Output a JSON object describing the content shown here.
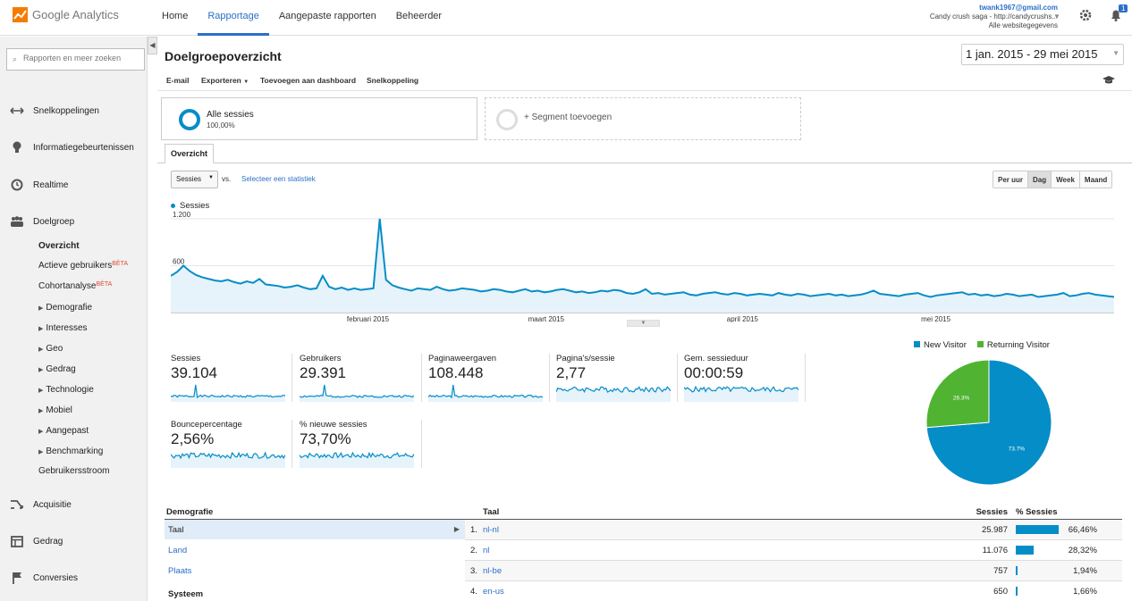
{
  "app": {
    "logo_text": "Google Analytics",
    "nav": [
      {
        "label": "Home"
      },
      {
        "label": "Rapportage"
      },
      {
        "label": "Aangepaste rapporten"
      },
      {
        "label": "Beheerder"
      }
    ],
    "account": {
      "email": "twank1967@gmail.com",
      "property": "Candy crush saga - http://candycrushs...",
      "view": "Alle websitegegevens",
      "notification_count": "1"
    }
  },
  "sidebar": {
    "search_placeholder": "Rapporten en meer zoeken",
    "groups": [
      {
        "label": "Snelkoppelingen",
        "icon": "shortcut-icon"
      },
      {
        "label": "Informatiegebeurtenissen",
        "icon": "lightbulb-icon"
      },
      {
        "label": "Realtime",
        "icon": "clock-icon"
      },
      {
        "label": "Doelgroep",
        "icon": "people-icon"
      },
      {
        "label": "Acquisitie",
        "icon": "acquisition-icon"
      },
      {
        "label": "Gedrag",
        "icon": "behavior-icon"
      },
      {
        "label": "Conversies",
        "icon": "flag-icon"
      }
    ],
    "audience_items": [
      {
        "label": "Overzicht"
      },
      {
        "label": "Actieve gebruikers",
        "badge": "BÈTA"
      },
      {
        "label": "Cohortanalyse",
        "badge": "BÈTA"
      },
      {
        "label": "Demografie"
      },
      {
        "label": "Interesses"
      },
      {
        "label": "Geo"
      },
      {
        "label": "Gedrag"
      },
      {
        "label": "Technologie"
      },
      {
        "label": "Mobiel"
      },
      {
        "label": "Aangepast"
      },
      {
        "label": "Benchmarking"
      },
      {
        "label": "Gebruikersstroom"
      }
    ]
  },
  "report": {
    "title": "Doelgroepoverzicht",
    "date_range": "1 jan. 2015 - 29 mei 2015",
    "toolbar": {
      "email": "E-mail",
      "export": "Exporteren",
      "add_dashboard": "Toevoegen aan dashboard",
      "shortcut": "Snelkoppeling"
    },
    "segment": {
      "name": "Alle sessies",
      "pct": "100,00%"
    },
    "add_segment": "+ Segment toevoegen",
    "tab": "Overzicht",
    "metric_select": "Sessies",
    "vs": "vs.",
    "select_stat": "Selecteer een statistiek",
    "periods": [
      {
        "label": "Per uur"
      },
      {
        "label": "Dag"
      },
      {
        "label": "Week"
      },
      {
        "label": "Maand"
      }
    ]
  },
  "chart_data": {
    "type": "line",
    "title": "",
    "series": [
      {
        "name": "Sessies",
        "values": [
          470,
          520,
          600,
          530,
          480,
          450,
          430,
          410,
          400,
          420,
          390,
          370,
          400,
          380,
          430,
          360,
          350,
          340,
          320,
          330,
          350,
          320,
          300,
          310,
          470,
          330,
          300,
          320,
          290,
          310,
          290,
          300,
          310,
          1200,
          420,
          350,
          320,
          300,
          280,
          310,
          300,
          290,
          330,
          300,
          280,
          290,
          310,
          300,
          290,
          270,
          280,
          300,
          290,
          270,
          260,
          280,
          300,
          270,
          280,
          260,
          270,
          290,
          300,
          280,
          260,
          270,
          250,
          260,
          280,
          270,
          290,
          280,
          250,
          240,
          260,
          300,
          240,
          250,
          230,
          240,
          250,
          260,
          230,
          220,
          240,
          250,
          260,
          240,
          230,
          250,
          240,
          220,
          230,
          240,
          230,
          220,
          250,
          230,
          220,
          240,
          230,
          210,
          220,
          230,
          240,
          220,
          230,
          210,
          220,
          230,
          250,
          280,
          240,
          230,
          220,
          210,
          230,
          240,
          250,
          220,
          200,
          220,
          230,
          240,
          250,
          260,
          230,
          240,
          220,
          230,
          210,
          220,
          240,
          230,
          210,
          220,
          230,
          200,
          210,
          220,
          230,
          250,
          210,
          220,
          240,
          250,
          230,
          220,
          210,
          200
        ]
      }
    ],
    "x_tick_labels": [
      "februari 2015",
      "maart 2015",
      "april 2015",
      "mei 2015"
    ],
    "y_tick_labels": [
      "1.200",
      "600"
    ],
    "ylim": [
      0,
      1200
    ],
    "grid": true,
    "legend": "top-left"
  },
  "kpis": [
    {
      "label": "Sessies",
      "value": "39.104"
    },
    {
      "label": "Gebruikers",
      "value": "29.391"
    },
    {
      "label": "Paginaweergaven",
      "value": "108.448"
    },
    {
      "label": "Pagina's/sessie",
      "value": "2,77"
    },
    {
      "label": "Gem. sessieduur",
      "value": "00:00:59"
    },
    {
      "label": "Bouncepercentage",
      "value": "2,56%"
    },
    {
      "label": "% nieuwe sessies",
      "value": "73,70%"
    }
  ],
  "pie": {
    "type": "pie",
    "slices": [
      {
        "name": "New Visitor",
        "value": 73.7,
        "label": "73.7%",
        "color": "#058dc7"
      },
      {
        "name": "Returning Visitor",
        "value": 26.3,
        "label": "26.3%",
        "color": "#50b432"
      }
    ]
  },
  "demographics": {
    "header": "Demografie",
    "items": [
      {
        "label": "Taal"
      },
      {
        "label": "Land"
      },
      {
        "label": "Plaats"
      }
    ],
    "system_header": "Systeem"
  },
  "language_table": {
    "headers": {
      "name": "Taal",
      "sessions": "Sessies",
      "pct": "% Sessies"
    },
    "rows": [
      {
        "idx": "1.",
        "name": "nl-nl",
        "sessions": "25.987",
        "pct": "66,46%",
        "share": 66.46
      },
      {
        "idx": "2.",
        "name": "nl",
        "sessions": "11.076",
        "pct": "28,32%",
        "share": 28.32
      },
      {
        "idx": "3.",
        "name": "nl-be",
        "sessions": "757",
        "pct": "1,94%",
        "share": 1.94
      },
      {
        "idx": "4.",
        "name": "en-us",
        "sessions": "650",
        "pct": "1,66%",
        "share": 1.66
      }
    ]
  },
  "colors": {
    "accent": "#058dc7",
    "link": "#2b6fc9",
    "returning": "#50b432"
  }
}
